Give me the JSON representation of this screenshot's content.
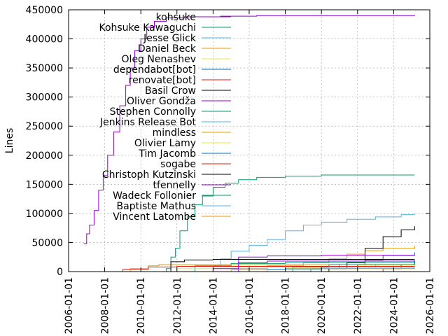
{
  "chart_data": {
    "type": "line",
    "title": "",
    "xlabel": "",
    "ylabel": "Lines",
    "x_type": "date",
    "xlim": [
      "2006-01-01",
      "2026-01-01"
    ],
    "ylim": [
      0,
      450000
    ],
    "xticks": [
      "2006-01-01",
      "2008-01-01",
      "2010-01-01",
      "2012-01-01",
      "2014-01-01",
      "2016-01-01",
      "2018-01-01",
      "2020-01-01",
      "2022-01-01",
      "2024-01-01",
      "2026-01-01"
    ],
    "yticks": [
      0,
      50000,
      100000,
      150000,
      200000,
      250000,
      300000,
      350000,
      400000,
      450000
    ],
    "grid": true,
    "legend": "top-left",
    "series": [
      {
        "name": "kohsuke",
        "color": "#9400d3",
        "step": true,
        "points": [
          [
            "2006-11-01",
            48000
          ],
          [
            "2007-01-01",
            65000
          ],
          [
            "2007-03-01",
            80000
          ],
          [
            "2007-06-01",
            105000
          ],
          [
            "2007-09-01",
            140000
          ],
          [
            "2007-12-01",
            165000
          ],
          [
            "2008-03-01",
            200000
          ],
          [
            "2008-07-01",
            240000
          ],
          [
            "2008-11-01",
            285000
          ],
          [
            "2009-03-01",
            320000
          ],
          [
            "2009-06-01",
            350000
          ],
          [
            "2009-09-01",
            380000
          ],
          [
            "2010-01-01",
            400000
          ],
          [
            "2010-05-01",
            420000
          ],
          [
            "2010-10-01",
            430000
          ],
          [
            "2011-06-01",
            436000
          ],
          [
            "2012-06-01",
            438000
          ],
          [
            "2014-06-01",
            439000
          ],
          [
            "2016-06-01",
            440000
          ],
          [
            "2020-01-01",
            440000
          ],
          [
            "2025-03-01",
            441000
          ]
        ]
      },
      {
        "name": "Kohsuke Kawaguchi",
        "color": "#009e73",
        "step": true,
        "points": [
          [
            "2010-12-01",
            0
          ],
          [
            "2011-06-01",
            5000
          ],
          [
            "2011-09-01",
            25000
          ],
          [
            "2011-12-01",
            40000
          ],
          [
            "2012-03-01",
            70000
          ],
          [
            "2012-08-01",
            95000
          ],
          [
            "2013-01-01",
            115000
          ],
          [
            "2013-06-01",
            130000
          ],
          [
            "2014-01-01",
            145000
          ],
          [
            "2014-09-01",
            152000
          ],
          [
            "2015-06-01",
            158000
          ],
          [
            "2016-06-01",
            162000
          ],
          [
            "2018-01-01",
            164000
          ],
          [
            "2020-01-01",
            166000
          ],
          [
            "2022-01-01",
            166000
          ],
          [
            "2025-03-01",
            166000
          ]
        ]
      },
      {
        "name": "Jesse Glick",
        "color": "#56b4e9",
        "step": true,
        "points": [
          [
            "2013-06-01",
            0
          ],
          [
            "2014-01-01",
            10000
          ],
          [
            "2014-06-01",
            22000
          ],
          [
            "2015-01-01",
            35000
          ],
          [
            "2016-01-01",
            45000
          ],
          [
            "2017-01-01",
            55000
          ],
          [
            "2018-01-01",
            70000
          ],
          [
            "2019-01-01",
            80000
          ],
          [
            "2020-01-01",
            85000
          ],
          [
            "2021-06-01",
            90000
          ],
          [
            "2023-01-01",
            94000
          ],
          [
            "2024-06-01",
            98000
          ],
          [
            "2025-03-01",
            100000
          ]
        ]
      },
      {
        "name": "Daniel Beck",
        "color": "#e69f00",
        "step": true,
        "points": [
          [
            "2014-06-01",
            0
          ],
          [
            "2015-06-01",
            5000
          ],
          [
            "2017-01-01",
            10000
          ],
          [
            "2019-01-01",
            15000
          ],
          [
            "2020-06-01",
            22000
          ],
          [
            "2021-06-01",
            30000
          ],
          [
            "2022-06-01",
            36000
          ],
          [
            "2023-06-01",
            40000
          ],
          [
            "2025-03-01",
            44000
          ]
        ]
      },
      {
        "name": "Oleg Nenashev",
        "color": "#f0e442",
        "step": true,
        "points": [
          [
            "2014-06-01",
            0
          ],
          [
            "2016-01-01",
            3000
          ],
          [
            "2018-01-01",
            6000
          ],
          [
            "2020-01-01",
            9000
          ],
          [
            "2022-01-01",
            11000
          ],
          [
            "2025-03-01",
            12000
          ]
        ]
      },
      {
        "name": "dependabot[bot]",
        "color": "#0072b2",
        "step": true,
        "points": [
          [
            "2018-06-01",
            0
          ],
          [
            "2019-06-01",
            5000
          ],
          [
            "2021-01-01",
            12000
          ],
          [
            "2022-06-01",
            20000
          ],
          [
            "2023-06-01",
            28000
          ],
          [
            "2025-03-01",
            33000
          ]
        ]
      },
      {
        "name": "renovate[bot]",
        "color": "#e51e10",
        "step": true,
        "points": [
          [
            "2022-06-01",
            0
          ],
          [
            "2023-06-01",
            5000
          ],
          [
            "2024-06-01",
            12000
          ],
          [
            "2025-03-01",
            18000
          ]
        ]
      },
      {
        "name": "Basil Crow",
        "color": "#000000",
        "step": true,
        "points": [
          [
            "2019-01-01",
            0
          ],
          [
            "2020-06-01",
            5000
          ],
          [
            "2021-06-01",
            15000
          ],
          [
            "2022-06-01",
            40000
          ],
          [
            "2023-06-01",
            60000
          ],
          [
            "2024-06-01",
            72000
          ],
          [
            "2025-03-01",
            78000
          ]
        ]
      },
      {
        "name": "Oliver Gondža",
        "color": "#9400d3",
        "step": true,
        "points": [
          [
            "2013-01-01",
            0
          ],
          [
            "2014-01-01",
            5000
          ],
          [
            "2015-06-01",
            25000
          ],
          [
            "2017-01-01",
            27000
          ],
          [
            "2020-01-01",
            28000
          ],
          [
            "2025-03-01",
            28000
          ]
        ]
      },
      {
        "name": "Stephen Connolly",
        "color": "#009e73",
        "step": true,
        "points": [
          [
            "2011-01-01",
            0
          ],
          [
            "2013-01-01",
            10000
          ],
          [
            "2015-01-01",
            14000
          ],
          [
            "2018-01-01",
            16000
          ],
          [
            "2025-03-01",
            16000
          ]
        ]
      },
      {
        "name": "Jenkins Release Bot",
        "color": "#56b4e9",
        "step": true,
        "points": [
          [
            "2016-01-01",
            0
          ],
          [
            "2018-01-01",
            4000
          ],
          [
            "2020-01-01",
            8000
          ],
          [
            "2023-01-01",
            12000
          ],
          [
            "2025-03-01",
            14000
          ]
        ]
      },
      {
        "name": "mindless",
        "color": "#e69f00",
        "step": true,
        "points": [
          [
            "2008-06-01",
            0
          ],
          [
            "2009-06-01",
            5000
          ],
          [
            "2010-06-01",
            10000
          ],
          [
            "2011-01-01",
            12000
          ],
          [
            "2012-01-01",
            12000
          ],
          [
            "2025-03-01",
            12000
          ]
        ]
      },
      {
        "name": "Olivier Lamy",
        "color": "#f0e442",
        "step": true,
        "points": [
          [
            "2010-06-01",
            0
          ],
          [
            "2012-01-01",
            5000
          ],
          [
            "2014-01-01",
            8000
          ],
          [
            "2025-03-01",
            9000
          ]
        ]
      },
      {
        "name": "Tim Jacomb",
        "color": "#0072b2",
        "step": true,
        "points": [
          [
            "2018-01-01",
            0
          ],
          [
            "2020-01-01",
            5000
          ],
          [
            "2022-01-01",
            12000
          ],
          [
            "2025-03-01",
            20000
          ]
        ]
      },
      {
        "name": "sogabe",
        "color": "#e51e10",
        "step": true,
        "points": [
          [
            "2008-01-01",
            0
          ],
          [
            "2009-01-01",
            4000
          ],
          [
            "2010-06-01",
            8000
          ],
          [
            "2012-01-01",
            9000
          ],
          [
            "2025-03-01",
            9000
          ]
        ]
      },
      {
        "name": "Christoph Kutzinski",
        "color": "#000000",
        "step": true,
        "points": [
          [
            "2011-06-01",
            0
          ],
          [
            "2011-09-01",
            17000
          ],
          [
            "2012-06-01",
            20000
          ],
          [
            "2014-01-01",
            21000
          ],
          [
            "2025-03-01",
            21000
          ]
        ]
      },
      {
        "name": "tfennelly",
        "color": "#9400d3",
        "step": true,
        "points": [
          [
            "2014-06-01",
            0
          ],
          [
            "2015-06-01",
            15000
          ],
          [
            "2017-01-01",
            18000
          ],
          [
            "2025-03-01",
            18000
          ]
        ]
      },
      {
        "name": "Wadeck Follonier",
        "color": "#009e73",
        "step": true,
        "points": [
          [
            "2017-06-01",
            0
          ],
          [
            "2018-06-01",
            8000
          ],
          [
            "2020-06-01",
            12000
          ],
          [
            "2025-03-01",
            13000
          ]
        ]
      },
      {
        "name": "Baptiste Mathus",
        "color": "#56b4e9",
        "step": true,
        "points": [
          [
            "2015-01-01",
            0
          ],
          [
            "2017-01-01",
            4000
          ],
          [
            "2020-01-01",
            6000
          ],
          [
            "2025-03-01",
            7000
          ]
        ]
      },
      {
        "name": "Vincent Latombe",
        "color": "#e69f00",
        "step": true,
        "points": [
          [
            "2013-06-01",
            0
          ],
          [
            "2015-01-01",
            3000
          ],
          [
            "2018-01-01",
            5000
          ],
          [
            "2025-03-01",
            6000
          ]
        ]
      }
    ]
  }
}
